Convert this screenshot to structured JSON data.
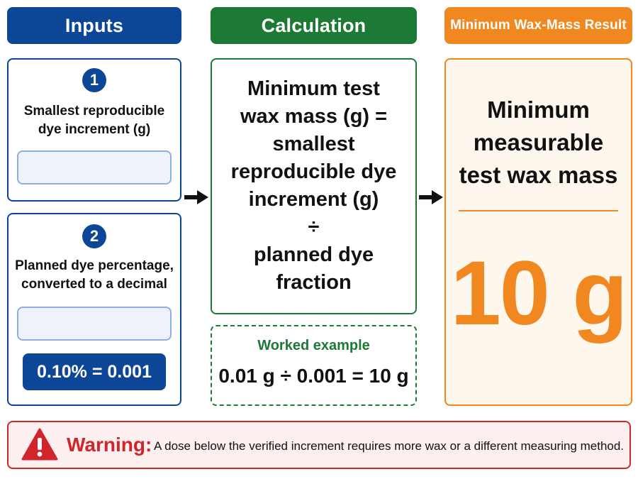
{
  "headers": {
    "inputs": "Inputs",
    "calculation": "Calculation",
    "result": "Minimum Wax-Mass Result"
  },
  "inputs": [
    {
      "step": "1",
      "label_lines": [
        "Smallest reproducible",
        "dye increment (g)"
      ]
    },
    {
      "step": "2",
      "label_lines": [
        "Planned dye percentage,",
        "converted to a decimal"
      ],
      "conversion": "0.10% = 0.001"
    }
  ],
  "calculation": {
    "formula_lines": [
      "Minimum test",
      "wax mass (g) =",
      "smallest",
      "reproducible dye",
      "increment (g)",
      "÷",
      "planned dye",
      "fraction"
    ],
    "example_title": "Worked example",
    "example_equation": "0.01 g ÷ 0.001 = 10 g"
  },
  "result": {
    "label_lines": [
      "Minimum",
      "measurable",
      "test wax mass"
    ],
    "value": "10 g"
  },
  "warning": {
    "label": "Warning:",
    "text": "A dose below the verified increment requires more wax or a different measuring method."
  },
  "colors": {
    "inputs": "#0d4597",
    "calculation": "#1c7a34",
    "result": "#f0871f",
    "warning": "#d0252a"
  },
  "icons": [
    "right-arrow-icon",
    "warning-triangle-icon"
  ]
}
